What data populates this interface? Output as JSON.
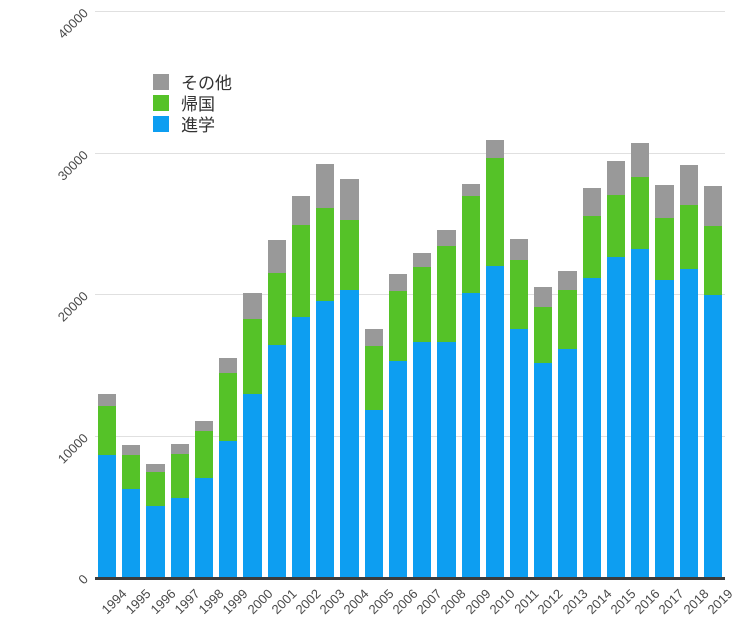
{
  "chart_data": {
    "type": "bar",
    "stacked": true,
    "title": "",
    "xlabel": "",
    "ylabel": "",
    "grid": true,
    "legend_position": "top-left-inside",
    "ylim": [
      0,
      40000
    ],
    "y_ticks": [
      0,
      10000,
      20000,
      30000,
      40000
    ],
    "categories": [
      "1994",
      "1995",
      "1996",
      "1997",
      "1998",
      "1999",
      "2000",
      "2001",
      "2002",
      "2003",
      "2004",
      "2005",
      "2006",
      "2007",
      "2008",
      "2009",
      "2010",
      "2011",
      "2012",
      "2013",
      "2014",
      "2015",
      "2016",
      "2017",
      "2018",
      "2019"
    ],
    "series": [
      {
        "name": "その他",
        "color": "#999999",
        "values": [
          800,
          700,
          600,
          700,
          700,
          1100,
          1900,
          2300,
          2000,
          3100,
          2900,
          1200,
          1200,
          1000,
          1100,
          900,
          1300,
          1500,
          1400,
          1300,
          2000,
          2400,
          2400,
          2300,
          2800,
          2800
        ]
      },
      {
        "name": "帰国",
        "color": "#55c228",
        "values": [
          3500,
          2400,
          2400,
          3100,
          3300,
          4800,
          5300,
          5100,
          6500,
          6600,
          4900,
          4500,
          4900,
          5300,
          6800,
          6800,
          7600,
          4900,
          4000,
          4200,
          4400,
          4400,
          5100,
          4400,
          4500,
          4900
        ]
      },
      {
        "name": "進学",
        "color": "#0d9ef1",
        "values": [
          8600,
          6200,
          5000,
          5600,
          7000,
          9600,
          12900,
          16400,
          18400,
          19500,
          20300,
          11800,
          15300,
          16600,
          16600,
          20100,
          22000,
          17500,
          15100,
          16100,
          21100,
          22600,
          23200,
          21000,
          21800,
          19900
        ]
      }
    ],
    "colors": {
      "background": "#ffffff",
      "gridline": "#e0e0e0",
      "axis_baseline": "#3c3c3c",
      "tick_text": "#494949",
      "legend_text": "#333333"
    }
  }
}
